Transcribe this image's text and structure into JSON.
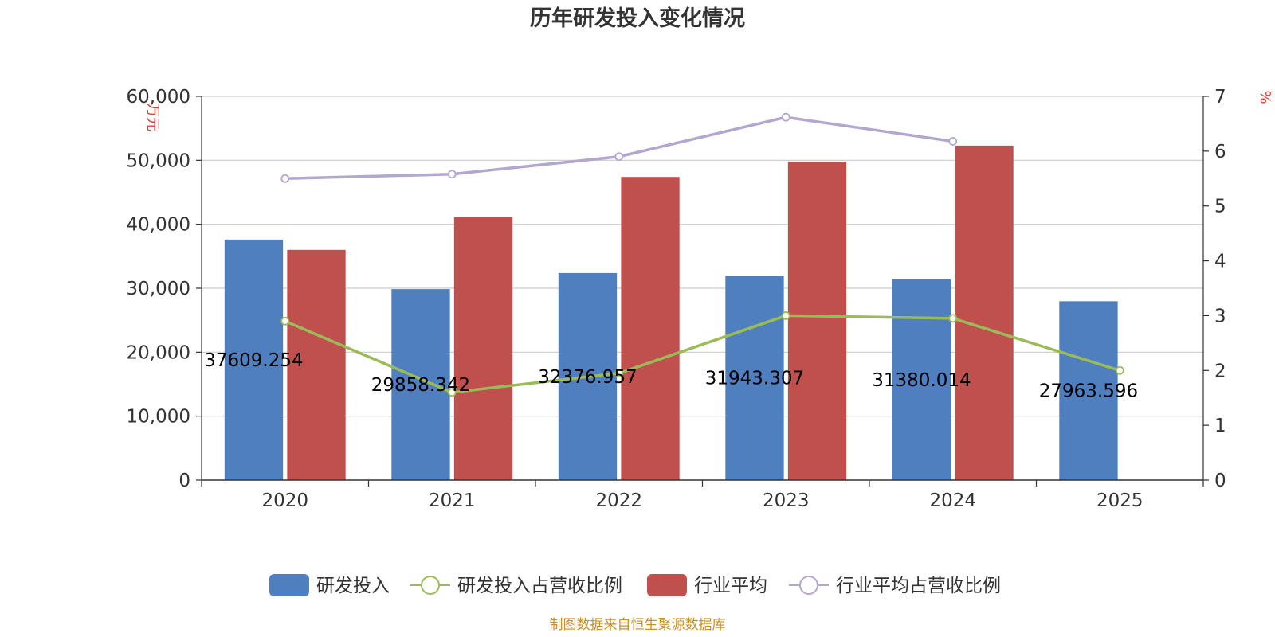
{
  "chart_data": {
    "type": "bar",
    "title": "历年研发投入变化情况",
    "categories": [
      "2020",
      "2021",
      "2022",
      "2023",
      "2024",
      "2025"
    ],
    "y_left": {
      "label": "万元",
      "range": [
        0,
        60000
      ],
      "ticks": [
        "0",
        "10,000",
        "20,000",
        "30,000",
        "40,000",
        "50,000",
        "60,000"
      ]
    },
    "y_right": {
      "label": "%",
      "range": [
        0,
        7
      ],
      "ticks": [
        "0",
        "1",
        "2",
        "3",
        "4",
        "5",
        "6",
        "7"
      ]
    },
    "grid": true,
    "legend_position": "bottom",
    "series": [
      {
        "name": "研发投入",
        "type": "bar",
        "axis": "left",
        "color": "#4f7fbf",
        "values": [
          37609.254,
          29858.342,
          32376.957,
          31943.307,
          31380.014,
          27963.596
        ],
        "labels": [
          "37609.254",
          "29858.342",
          "32376.957",
          "31943.307",
          "31380.014",
          "27963.596"
        ]
      },
      {
        "name": "研发投入占营收比例",
        "type": "line",
        "axis": "right",
        "color": "#9bbb59",
        "values": [
          2.9,
          1.6,
          1.95,
          3.0,
          2.95,
          2.0
        ]
      },
      {
        "name": "行业平均",
        "type": "bar",
        "axis": "left",
        "color": "#c0504d",
        "values": [
          36000,
          41200,
          47400,
          49800,
          52300,
          null
        ]
      },
      {
        "name": "行业平均占营收比例",
        "type": "line",
        "axis": "right",
        "color": "#b3a6cf",
        "values": [
          5.5,
          5.58,
          5.9,
          6.62,
          6.18,
          null
        ]
      }
    ]
  },
  "footer": {
    "source": "制图数据来自恒生聚源数据库"
  }
}
